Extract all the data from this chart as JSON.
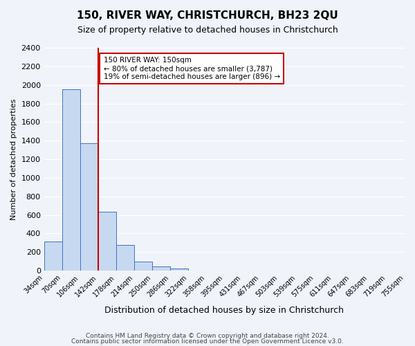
{
  "title": "150, RIVER WAY, CHRISTCHURCH, BH23 2QU",
  "subtitle": "Size of property relative to detached houses in Christchurch",
  "xlabel": "Distribution of detached houses by size in Christchurch",
  "ylabel": "Number of detached properties",
  "bin_labels": [
    "34sqm",
    "70sqm",
    "106sqm",
    "142sqm",
    "178sqm",
    "214sqm",
    "250sqm",
    "286sqm",
    "322sqm",
    "358sqm",
    "395sqm",
    "431sqm",
    "467sqm",
    "503sqm",
    "539sqm",
    "575sqm",
    "611sqm",
    "647sqm",
    "683sqm",
    "719sqm",
    "755sqm"
  ],
  "bar_heights": [
    315,
    1950,
    1370,
    630,
    275,
    95,
    45,
    25,
    0,
    0,
    0,
    0,
    0,
    0,
    0,
    0,
    0,
    0,
    0,
    0
  ],
  "bar_color": "#c6d9f0",
  "bar_edge_color": "#4472c4",
  "vline_x": 3,
  "vline_color": "#cc0000",
  "ylim": [
    0,
    2400
  ],
  "yticks": [
    0,
    200,
    400,
    600,
    800,
    1000,
    1200,
    1400,
    1600,
    1800,
    2000,
    2200,
    2400
  ],
  "annotation_title": "150 RIVER WAY: 150sqm",
  "annotation_line1": "← 80% of detached houses are smaller (3,787)",
  "annotation_line2": "19% of semi-detached houses are larger (896) →",
  "annotation_box_edge": "#cc0000",
  "footer_line1": "Contains HM Land Registry data © Crown copyright and database right 2024.",
  "footer_line2": "Contains public sector information licensed under the Open Government Licence v3.0.",
  "bg_color": "#f0f4fa",
  "plot_bg_color": "#f0f4fa"
}
